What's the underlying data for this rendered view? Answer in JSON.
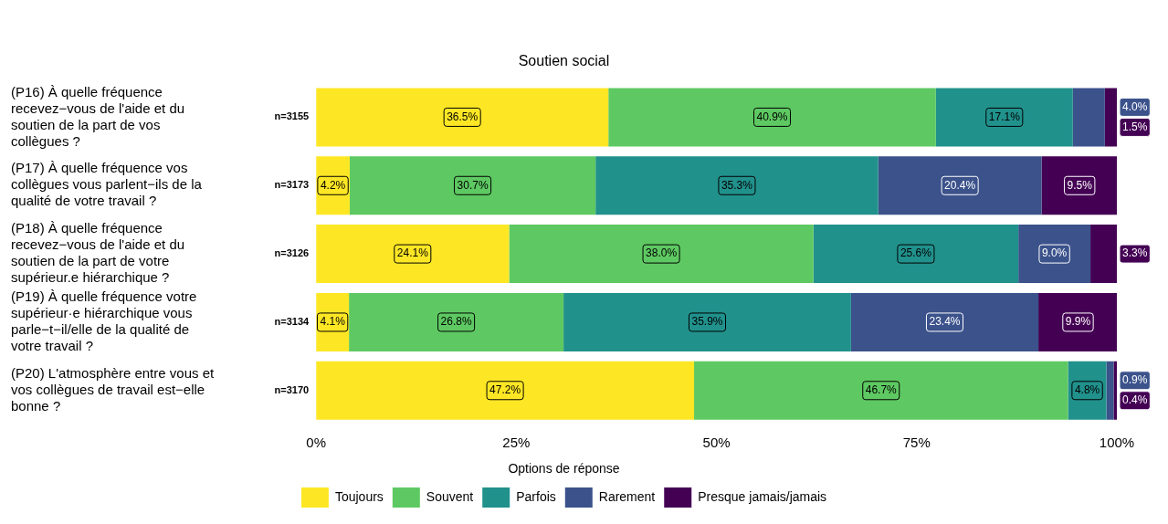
{
  "chart_data": {
    "type": "bar",
    "orientation": "horizontal",
    "stacked": true,
    "title": "Soutien social",
    "legend_title": "Options de réponse",
    "legend": "bottom",
    "categories": [
      "(P16) À quelle fréquence recevez−vous de l'aide et du soutien de la part de vos collègues ?",
      "(P17) À quelle fréquence vos collègues vous parlent−ils de la qualité de votre travail ?",
      "(P18) À quelle fréquence recevez−vous de l'aide et du soutien de la part de votre supérieur.e hiérarchique ?",
      "(P19) À quelle fréquence votre supérieur·e hiérarchique vous parle−t−il/elle de la qualité de votre travail ?",
      "(P20) L'atmosphère entre vous et vos collègues de travail est−elle bonne ?"
    ],
    "annotations": [
      "n=3155",
      "n=3173",
      "n=3126",
      "n=3134",
      "n=3170"
    ],
    "xlim": [
      0,
      100
    ],
    "xticks": [
      {
        "value": 0,
        "label": "0%"
      },
      {
        "value": 25,
        "label": "25%"
      },
      {
        "value": 50,
        "label": "50%"
      },
      {
        "value": 75,
        "label": "75%"
      },
      {
        "value": 100,
        "label": "100%"
      }
    ],
    "series": [
      {
        "name": "Toujours",
        "color": "#fde725",
        "values": [
          36.5,
          4.2,
          24.1,
          4.1,
          47.2
        ],
        "value_labels": [
          "36.5%",
          "4.2%",
          "24.1%",
          "4.1%",
          "47.2%"
        ]
      },
      {
        "name": "Souvent",
        "color": "#5ec962",
        "values": [
          40.9,
          30.7,
          38.0,
          26.8,
          46.7
        ],
        "value_labels": [
          "40.9%",
          "30.7%",
          "38.0%",
          "26.8%",
          "46.7%"
        ]
      },
      {
        "name": "Parfois",
        "color": "#21918c",
        "values": [
          17.1,
          35.3,
          25.6,
          35.9,
          4.8
        ],
        "value_labels": [
          "17.1%",
          "35.3%",
          "25.6%",
          "35.9%",
          "4.8%"
        ]
      },
      {
        "name": "Rarement",
        "color": "#3b528b",
        "values": [
          4.0,
          20.4,
          9.0,
          23.4,
          0.9
        ],
        "value_labels": [
          "4.0%",
          "20.4%",
          "9.0%",
          "23.4%",
          "0.9%"
        ]
      },
      {
        "name": "Presque jamais/jamais",
        "color": "#440154",
        "values": [
          1.5,
          9.5,
          3.3,
          9.9,
          0.4
        ],
        "value_labels": [
          "1.5%",
          "9.5%",
          "3.3%",
          "9.9%",
          "0.4%"
        ]
      }
    ]
  }
}
